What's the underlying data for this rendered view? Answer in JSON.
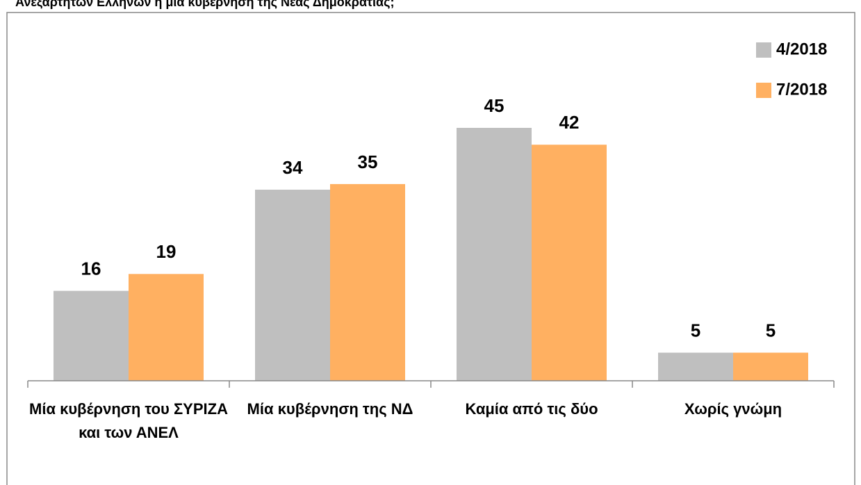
{
  "chart_data": {
    "type": "bar",
    "title": "Ανεξάρτητων Ελλήνων ή μία κυβέρνηση της Νέας Δημοκρατίας;",
    "categories": [
      "Μία κυβέρνηση του ΣΥΡΙΖΑ και των ΑΝΕΛ",
      "Μία κυβέρνηση της ΝΔ",
      "Καμία από τις δύο",
      "Χωρίς γνώμη"
    ],
    "series": [
      {
        "name": "4/2018",
        "color": "#bfbfbf",
        "values": [
          16,
          34,
          45,
          5
        ]
      },
      {
        "name": "7/2018",
        "color": "#ffb061",
        "values": [
          19,
          35,
          42,
          5
        ]
      }
    ],
    "legend": "upper right"
  }
}
